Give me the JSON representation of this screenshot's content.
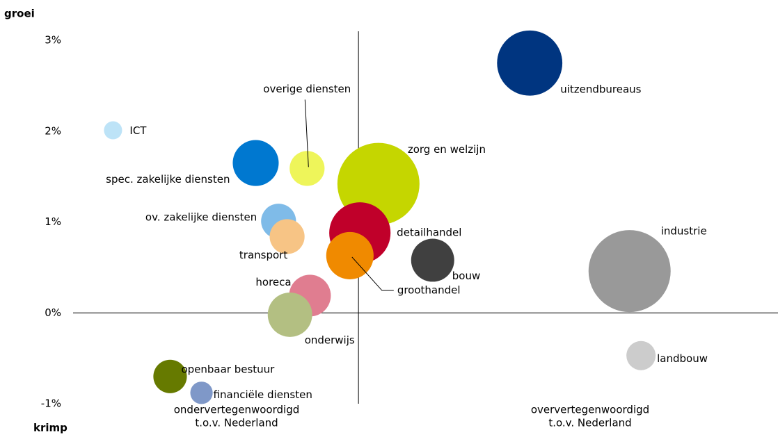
{
  "chart_data": {
    "type": "bubble",
    "y_label_top": "groei",
    "y_label_bottom": "krimp",
    "annotations": [
      [
        "ondervertegenwoordigd",
        "t.o.v. Nederland"
      ],
      [
        "oververtegenwoordigd",
        "t.o.v. Nederland"
      ]
    ],
    "xlim": [
      -1,
      1.47
    ],
    "ylim": [
      -1,
      3.1
    ],
    "yticks": [
      {
        "value": 3,
        "label": "3%"
      },
      {
        "value": 2,
        "label": "2%"
      },
      {
        "value": 1,
        "label": "1%"
      },
      {
        "value": 0,
        "label": "0%"
      },
      {
        "value": -1,
        "label": "-1%"
      }
    ],
    "points": [
      {
        "name": "uitzendbureaus",
        "x": 0.6,
        "y": 2.75,
        "size": 22,
        "color": "#003580"
      },
      {
        "name": "ICT",
        "x": -0.86,
        "y": 2.01,
        "size": 1.7,
        "color": "#bde3f7"
      },
      {
        "name": "spec. zakelijke diensten",
        "x": -0.36,
        "y": 1.65,
        "size": 10.9,
        "color": "#0078d0"
      },
      {
        "name": "overige diensten",
        "x": -0.18,
        "y": 1.59,
        "size": 6.3,
        "color": "#eef55a"
      },
      {
        "name": "zorg en welzijn",
        "x": 0.07,
        "y": 1.42,
        "size": 34.8,
        "color": "#c5d600"
      },
      {
        "name": "ov. zakelijke diensten",
        "x": -0.28,
        "y": 1.01,
        "size": 6.3,
        "color": "#7fbbe8"
      },
      {
        "name": "transport",
        "x": -0.25,
        "y": 0.84,
        "size": 6.3,
        "color": "#f7c485"
      },
      {
        "name": "detailhandel",
        "x": 0.005,
        "y": 0.88,
        "size": 19.4,
        "color": "#c0002a"
      },
      {
        "name": "groothandel",
        "x": -0.03,
        "y": 0.63,
        "size": 11.6,
        "color": "#f08a00"
      },
      {
        "name": "bouw",
        "x": 0.26,
        "y": 0.58,
        "size": 9.6,
        "color": "#404040"
      },
      {
        "name": "industrie",
        "x": 0.95,
        "y": 0.46,
        "size": 34.8,
        "color": "#999999"
      },
      {
        "name": "horeca",
        "x": -0.17,
        "y": 0.19,
        "size": 9,
        "color": "#e07d90"
      },
      {
        "name": "onderwijs",
        "x": -0.24,
        "y": -0.02,
        "size": 10.2,
        "color": "#b3bf82"
      },
      {
        "name": "landbouw",
        "x": 0.99,
        "y": -0.47,
        "size": 4.4,
        "color": "#cccccc"
      },
      {
        "name": "openbaar bestuur",
        "x": -0.66,
        "y": -0.7,
        "size": 5.8,
        "color": "#667a00"
      },
      {
        "name": "financiële diensten",
        "x": -0.55,
        "y": -0.88,
        "size": 2.6,
        "color": "#7f98c8"
      }
    ]
  }
}
